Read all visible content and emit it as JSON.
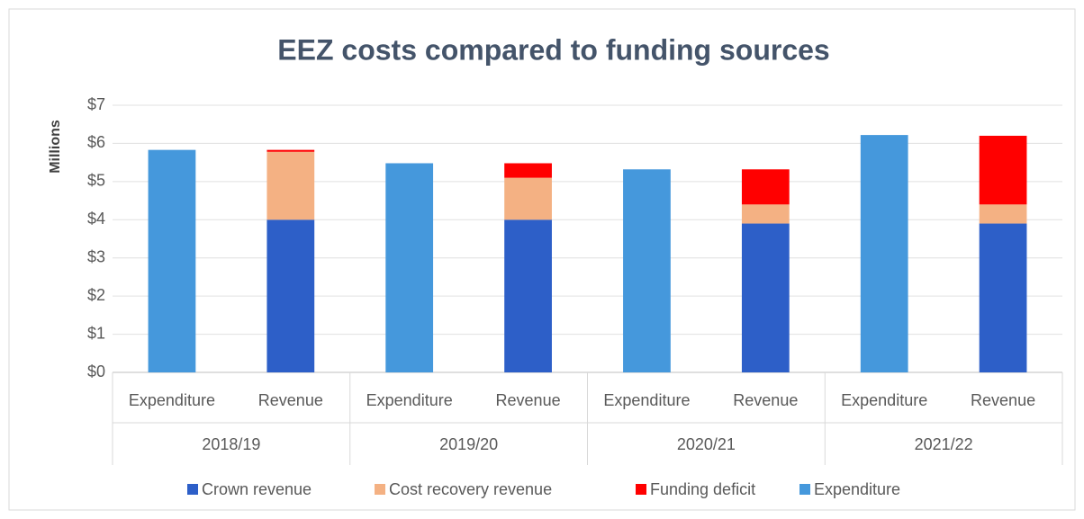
{
  "chart_data": {
    "type": "stacked_bar",
    "title": "EEZ costs compared to funding sources",
    "y_label": "Millions",
    "categories": [
      "Expenditure",
      "Revenue",
      "Expenditure",
      "Revenue",
      "Expenditure",
      "Revenue",
      "Expenditure",
      "Revenue"
    ],
    "groups": [
      "2018/19",
      "2019/20",
      "2020/21",
      "2021/22"
    ],
    "series": [
      {
        "name": "Crown revenue",
        "color": "#2d5fc8",
        "values": [
          null,
          4.0,
          null,
          4.0,
          null,
          3.9,
          null,
          3.9
        ]
      },
      {
        "name": "Cost recovery revenue",
        "color": "#f4b183",
        "values": [
          null,
          1.78,
          null,
          1.1,
          null,
          0.5,
          null,
          0.5
        ]
      },
      {
        "name": "Funding deficit",
        "color": "#ff0000",
        "values": [
          null,
          0.05,
          null,
          0.38,
          null,
          0.92,
          null,
          1.8
        ]
      },
      {
        "name": "Expenditure",
        "color": "#4598dc",
        "values": [
          5.83,
          null,
          5.48,
          null,
          5.32,
          null,
          6.22,
          null
        ]
      }
    ],
    "ylim": [
      0,
      7
    ],
    "yticks": [
      {
        "value": 0,
        "label": "$0"
      },
      {
        "value": 1,
        "label": "$1"
      },
      {
        "value": 2,
        "label": "$2"
      },
      {
        "value": 3,
        "label": "$3"
      },
      {
        "value": 4,
        "label": "$4"
      },
      {
        "value": 5,
        "label": "$5"
      },
      {
        "value": 6,
        "label": "$6"
      },
      {
        "value": 7,
        "label": "$7"
      }
    ],
    "grid": true,
    "legend": "bottom"
  }
}
